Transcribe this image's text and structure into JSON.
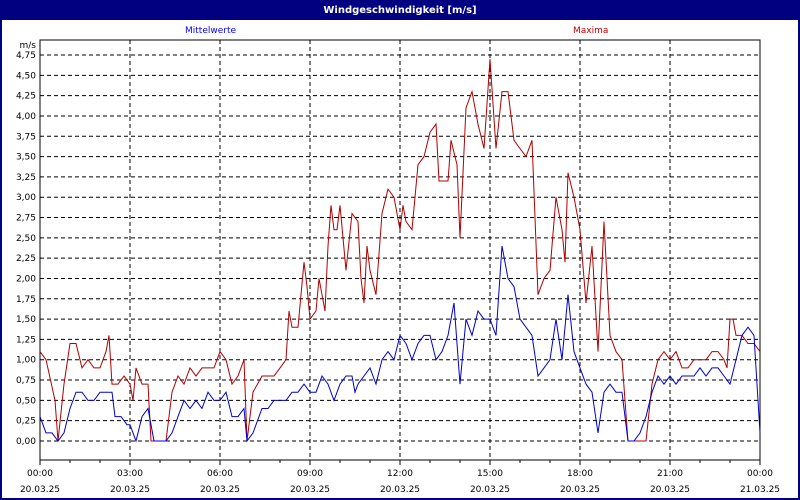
{
  "window": {
    "title": "Windgeschwindigkeit [m/s]"
  },
  "legend": {
    "mean_label": "Mittelwerte",
    "max_label": "Maxima"
  },
  "colors": {
    "mean": "#0000cc",
    "max": "#b00000",
    "titlebar": "#000080",
    "grid": "#000000"
  },
  "chart_data": {
    "type": "line",
    "title": "Windgeschwindigkeit [m/s]",
    "xlabel": "",
    "ylabel": "m/s",
    "ylim": [
      0,
      4.75
    ],
    "xlim_hours": [
      0,
      24
    ],
    "grid": true,
    "legend_position": "top",
    "y_ticks": [
      "0,00",
      "0,25",
      "0,50",
      "0,75",
      "1,00",
      "1,25",
      "1,50",
      "1,75",
      "2,00",
      "2,25",
      "2,50",
      "2,75",
      "3,00",
      "3,25",
      "3,50",
      "3,75",
      "4,00",
      "4,25",
      "4,50",
      "4,75"
    ],
    "x_ticks": [
      {
        "time": "00:00",
        "date": "20.03.25"
      },
      {
        "time": "03:00",
        "date": "20.03.25"
      },
      {
        "time": "06:00",
        "date": "20.03.25"
      },
      {
        "time": "09:00",
        "date": "20.03.25"
      },
      {
        "time": "12:00",
        "date": "20.03.25"
      },
      {
        "time": "15:00",
        "date": "20.03.25"
      },
      {
        "time": "18:00",
        "date": "20.03.25"
      },
      {
        "time": "21:00",
        "date": "20.03.25"
      },
      {
        "time": "00:00",
        "date": "21.03.25"
      }
    ],
    "series": [
      {
        "name": "Maxima",
        "points": [
          [
            0,
            1.1
          ],
          [
            0.2,
            1.0
          ],
          [
            0.5,
            0.5
          ],
          [
            0.6,
            0.0
          ],
          [
            0.8,
            0.7
          ],
          [
            1.0,
            1.2
          ],
          [
            1.2,
            1.2
          ],
          [
            1.4,
            0.9
          ],
          [
            1.6,
            1.0
          ],
          [
            1.8,
            0.9
          ],
          [
            2.0,
            0.9
          ],
          [
            2.2,
            1.1
          ],
          [
            2.3,
            1.3
          ],
          [
            2.4,
            0.7
          ],
          [
            2.6,
            0.7
          ],
          [
            2.8,
            0.8
          ],
          [
            3.0,
            0.7
          ],
          [
            3.1,
            0.5
          ],
          [
            3.2,
            0.9
          ],
          [
            3.4,
            0.7
          ],
          [
            3.6,
            0.7
          ],
          [
            3.7,
            0.0
          ],
          [
            4.0,
            0.0
          ],
          [
            4.2,
            0.0
          ],
          [
            4.4,
            0.6
          ],
          [
            4.6,
            0.8
          ],
          [
            4.8,
            0.7
          ],
          [
            5.0,
            0.9
          ],
          [
            5.2,
            0.8
          ],
          [
            5.4,
            0.9
          ],
          [
            5.6,
            0.9
          ],
          [
            5.8,
            0.9
          ],
          [
            6.0,
            1.1
          ],
          [
            6.2,
            1.0
          ],
          [
            6.4,
            0.7
          ],
          [
            6.6,
            0.8
          ],
          [
            6.8,
            1.0
          ],
          [
            6.9,
            0.0
          ],
          [
            7.1,
            0.6
          ],
          [
            7.4,
            0.8
          ],
          [
            7.6,
            0.8
          ],
          [
            7.8,
            0.8
          ],
          [
            8.0,
            0.9
          ],
          [
            8.2,
            1.0
          ],
          [
            8.3,
            1.6
          ],
          [
            8.4,
            1.4
          ],
          [
            8.6,
            1.4
          ],
          [
            8.8,
            2.2
          ],
          [
            8.9,
            1.9
          ],
          [
            9.0,
            1.5
          ],
          [
            9.2,
            1.6
          ],
          [
            9.3,
            2.0
          ],
          [
            9.4,
            1.8
          ],
          [
            9.5,
            1.6
          ],
          [
            9.6,
            2.4
          ],
          [
            9.7,
            2.9
          ],
          [
            9.8,
            2.6
          ],
          [
            9.9,
            2.6
          ],
          [
            10.0,
            2.9
          ],
          [
            10.2,
            2.1
          ],
          [
            10.4,
            2.8
          ],
          [
            10.6,
            2.7
          ],
          [
            10.7,
            2.0
          ],
          [
            10.8,
            1.7
          ],
          [
            10.9,
            2.4
          ],
          [
            11.0,
            2.1
          ],
          [
            11.2,
            1.8
          ],
          [
            11.4,
            2.8
          ],
          [
            11.6,
            3.1
          ],
          [
            11.8,
            3.0
          ],
          [
            12.0,
            2.6
          ],
          [
            12.1,
            2.9
          ],
          [
            12.2,
            2.7
          ],
          [
            12.4,
            2.6
          ],
          [
            12.6,
            3.4
          ],
          [
            12.8,
            3.5
          ],
          [
            13.0,
            3.8
          ],
          [
            13.2,
            3.9
          ],
          [
            13.3,
            3.2
          ],
          [
            13.6,
            3.2
          ],
          [
            13.7,
            3.7
          ],
          [
            13.9,
            3.4
          ],
          [
            14.0,
            2.5
          ],
          [
            14.2,
            4.1
          ],
          [
            14.4,
            4.3
          ],
          [
            14.6,
            3.9
          ],
          [
            14.8,
            3.6
          ],
          [
            15.0,
            4.7
          ],
          [
            15.2,
            3.6
          ],
          [
            15.4,
            4.3
          ],
          [
            15.6,
            4.3
          ],
          [
            15.8,
            3.7
          ],
          [
            16.0,
            3.6
          ],
          [
            16.2,
            3.5
          ],
          [
            16.4,
            3.7
          ],
          [
            16.6,
            1.8
          ],
          [
            16.8,
            2.0
          ],
          [
            17.0,
            2.1
          ],
          [
            17.2,
            3.0
          ],
          [
            17.4,
            2.6
          ],
          [
            17.5,
            2.2
          ],
          [
            17.6,
            3.3
          ],
          [
            17.8,
            3.0
          ],
          [
            18.0,
            2.6
          ],
          [
            18.2,
            1.7
          ],
          [
            18.4,
            2.4
          ],
          [
            18.6,
            1.1
          ],
          [
            18.8,
            2.7
          ],
          [
            19.0,
            1.3
          ],
          [
            19.2,
            1.1
          ],
          [
            19.4,
            1.0
          ],
          [
            19.6,
            0.0
          ],
          [
            19.8,
            0.0
          ],
          [
            20.0,
            0.0
          ],
          [
            20.2,
            0.0
          ],
          [
            20.4,
            0.7
          ],
          [
            20.6,
            1.0
          ],
          [
            20.8,
            1.1
          ],
          [
            21.0,
            1.0
          ],
          [
            21.2,
            1.1
          ],
          [
            21.4,
            0.9
          ],
          [
            21.6,
            0.9
          ],
          [
            21.8,
            1.0
          ],
          [
            22.0,
            1.0
          ],
          [
            22.2,
            1.0
          ],
          [
            22.4,
            1.1
          ],
          [
            22.6,
            1.1
          ],
          [
            22.8,
            1.0
          ],
          [
            22.9,
            0.9
          ],
          [
            23.0,
            1.5
          ],
          [
            23.1,
            1.5
          ],
          [
            23.2,
            1.3
          ],
          [
            23.4,
            1.3
          ],
          [
            23.6,
            1.2
          ],
          [
            23.8,
            1.2
          ],
          [
            24.0,
            1.1
          ]
        ]
      },
      {
        "name": "Mittelwerte",
        "points": [
          [
            0,
            0.3
          ],
          [
            0.2,
            0.1
          ],
          [
            0.4,
            0.1
          ],
          [
            0.6,
            0.0
          ],
          [
            0.8,
            0.1
          ],
          [
            1.0,
            0.4
          ],
          [
            1.2,
            0.6
          ],
          [
            1.4,
            0.6
          ],
          [
            1.6,
            0.5
          ],
          [
            1.8,
            0.5
          ],
          [
            2.0,
            0.6
          ],
          [
            2.2,
            0.6
          ],
          [
            2.4,
            0.6
          ],
          [
            2.5,
            0.3
          ],
          [
            2.7,
            0.3
          ],
          [
            2.9,
            0.2
          ],
          [
            3.0,
            0.2
          ],
          [
            3.2,
            0.0
          ],
          [
            3.4,
            0.3
          ],
          [
            3.6,
            0.4
          ],
          [
            3.8,
            0.0
          ],
          [
            4.0,
            0.0
          ],
          [
            4.2,
            0.0
          ],
          [
            4.4,
            0.1
          ],
          [
            4.6,
            0.3
          ],
          [
            4.8,
            0.5
          ],
          [
            5.0,
            0.4
          ],
          [
            5.2,
            0.5
          ],
          [
            5.4,
            0.4
          ],
          [
            5.6,
            0.6
          ],
          [
            5.8,
            0.5
          ],
          [
            6.0,
            0.5
          ],
          [
            6.2,
            0.6
          ],
          [
            6.4,
            0.3
          ],
          [
            6.6,
            0.3
          ],
          [
            6.8,
            0.4
          ],
          [
            6.9,
            0.0
          ],
          [
            7.1,
            0.1
          ],
          [
            7.4,
            0.4
          ],
          [
            7.6,
            0.4
          ],
          [
            7.8,
            0.5
          ],
          [
            8.0,
            0.5
          ],
          [
            8.2,
            0.5
          ],
          [
            8.4,
            0.6
          ],
          [
            8.6,
            0.6
          ],
          [
            8.8,
            0.7
          ],
          [
            9.0,
            0.6
          ],
          [
            9.2,
            0.6
          ],
          [
            9.4,
            0.8
          ],
          [
            9.6,
            0.7
          ],
          [
            9.8,
            0.5
          ],
          [
            10.0,
            0.7
          ],
          [
            10.2,
            0.8
          ],
          [
            10.4,
            0.8
          ],
          [
            10.5,
            0.6
          ],
          [
            10.6,
            0.7
          ],
          [
            10.8,
            0.8
          ],
          [
            11.0,
            0.9
          ],
          [
            11.2,
            0.7
          ],
          [
            11.4,
            1.0
          ],
          [
            11.6,
            1.1
          ],
          [
            11.8,
            1.0
          ],
          [
            12.0,
            1.3
          ],
          [
            12.2,
            1.2
          ],
          [
            12.4,
            1.0
          ],
          [
            12.6,
            1.2
          ],
          [
            12.8,
            1.3
          ],
          [
            13.0,
            1.3
          ],
          [
            13.2,
            1.0
          ],
          [
            13.4,
            1.1
          ],
          [
            13.6,
            1.3
          ],
          [
            13.8,
            1.7
          ],
          [
            14.0,
            0.7
          ],
          [
            14.2,
            1.5
          ],
          [
            14.4,
            1.3
          ],
          [
            14.6,
            1.6
          ],
          [
            14.8,
            1.5
          ],
          [
            15.0,
            1.5
          ],
          [
            15.2,
            1.3
          ],
          [
            15.4,
            2.4
          ],
          [
            15.6,
            2.0
          ],
          [
            15.8,
            1.9
          ],
          [
            16.0,
            1.5
          ],
          [
            16.2,
            1.4
          ],
          [
            16.4,
            1.3
          ],
          [
            16.6,
            0.8
          ],
          [
            16.8,
            0.9
          ],
          [
            17.0,
            1.0
          ],
          [
            17.2,
            1.5
          ],
          [
            17.4,
            1.0
          ],
          [
            17.6,
            1.8
          ],
          [
            17.8,
            1.1
          ],
          [
            18.0,
            0.9
          ],
          [
            18.2,
            0.7
          ],
          [
            18.4,
            0.6
          ],
          [
            18.6,
            0.1
          ],
          [
            18.8,
            0.6
          ],
          [
            19.0,
            0.7
          ],
          [
            19.2,
            0.6
          ],
          [
            19.4,
            0.6
          ],
          [
            19.6,
            0.0
          ],
          [
            19.8,
            0.0
          ],
          [
            20.0,
            0.1
          ],
          [
            20.2,
            0.3
          ],
          [
            20.4,
            0.6
          ],
          [
            20.6,
            0.8
          ],
          [
            20.8,
            0.7
          ],
          [
            21.0,
            0.8
          ],
          [
            21.2,
            0.7
          ],
          [
            21.4,
            0.8
          ],
          [
            21.6,
            0.8
          ],
          [
            21.8,
            0.8
          ],
          [
            22.0,
            0.9
          ],
          [
            22.2,
            0.8
          ],
          [
            22.4,
            0.9
          ],
          [
            22.6,
            0.9
          ],
          [
            22.8,
            0.8
          ],
          [
            23.0,
            0.7
          ],
          [
            23.2,
            1.0
          ],
          [
            23.4,
            1.3
          ],
          [
            23.6,
            1.4
          ],
          [
            23.8,
            1.3
          ],
          [
            24.0,
            0.1
          ]
        ]
      }
    ]
  }
}
